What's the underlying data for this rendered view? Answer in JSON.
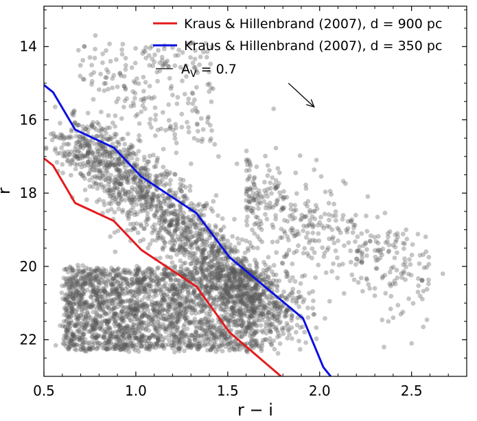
{
  "chart_data": {
    "type": "scatter",
    "xlabel": "r − i",
    "ylabel": "r",
    "xlim": [
      0.5,
      2.8
    ],
    "ylim": [
      23.0,
      12.9
    ],
    "y_inverted": true,
    "xticks": [
      "0.5",
      "1.0",
      "1.5",
      "2.0",
      "2.5"
    ],
    "yticks": [
      "14",
      "16",
      "18",
      "20",
      "22"
    ],
    "legend_position": "top-right",
    "legend": [
      {
        "label": "Kraus & Hillenbrand (2007), d = 900 pc",
        "color": "#e41a1c"
      },
      {
        "label": "Kraus & Hillenbrand (2007), d = 350 pc",
        "color": "#0a10e0"
      },
      {
        "label_main": "A",
        "label_sub": "V",
        "label_rest": " = 0.7",
        "color": "#000000"
      }
    ],
    "extinction_vector": {
      "from": [
        1.83,
        15.0
      ],
      "to": [
        1.97,
        15.65
      ],
      "color": "#000000"
    },
    "series": [
      {
        "name": "Kraus & Hillenbrand (2007), d = 900 pc",
        "type": "line",
        "color": "#e41a1c",
        "x": [
          0.5,
          0.55,
          0.67,
          0.88,
          1.03,
          1.33,
          1.51,
          1.79
        ],
        "y": [
          17.05,
          17.25,
          18.27,
          18.76,
          19.55,
          20.55,
          21.8,
          23.0
        ]
      },
      {
        "name": "Kraus & Hillenbrand (2007), d = 350 pc",
        "type": "line",
        "color": "#0a10e0",
        "x": [
          0.5,
          0.55,
          0.67,
          0.88,
          1.03,
          1.33,
          1.51,
          1.91,
          2.02,
          2.06
        ],
        "y": [
          15.05,
          15.25,
          16.27,
          16.76,
          17.55,
          18.55,
          19.75,
          21.42,
          22.75,
          23.0
        ]
      },
      {
        "type": "scatter",
        "color": "#5a5a5a",
        "opacity": 0.35,
        "n_points": 4800,
        "distribution": "dense cluster at r-i 0.6-1.6, r 20-22.3; diagonal band along isochrones; sparse tail to r-i 2.7",
        "x": [
          0.78,
          0.82,
          0.85,
          0.9,
          1.0,
          1.15,
          1.22,
          1.3,
          1.55,
          1.6,
          1.75,
          1.85,
          1.9,
          2.1,
          2.2,
          2.3,
          2.4,
          2.5,
          2.67,
          0.72,
          0.75,
          1.05,
          1.25,
          1.45,
          1.7,
          2.0,
          2.3,
          2.35
        ],
        "y": [
          13.7,
          14.2,
          14.7,
          15.1,
          15.9,
          16.8,
          16.9,
          17.2,
          17.2,
          18.4,
          15.7,
          18.6,
          18.7,
          19.3,
          19.8,
          20.6,
          21.4,
          22.1,
          20.2,
          14.0,
          14.3,
          15.7,
          16.2,
          17.0,
          17.7,
          18.8,
          20.8,
          22.2
        ]
      }
    ]
  }
}
